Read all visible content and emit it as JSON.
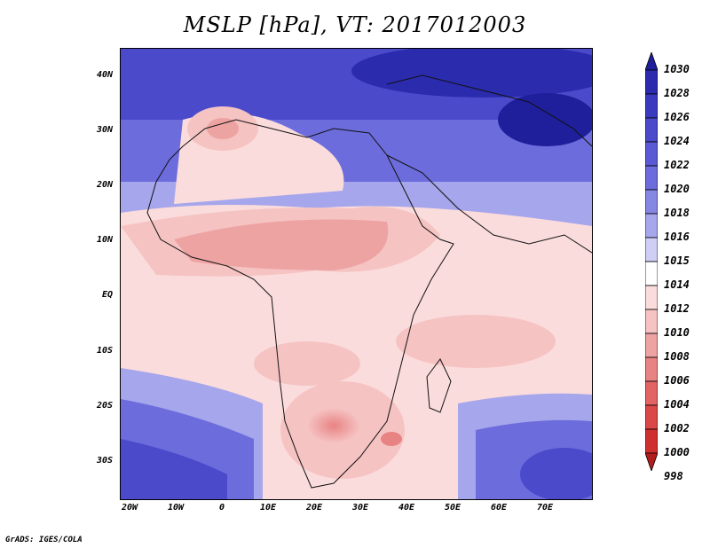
{
  "title": "MSLP [hPa], VT: 2017012003",
  "credit": "GrADS: IGES/COLA",
  "lat_labels": [
    "40N",
    "30N",
    "20N",
    "10N",
    "EQ",
    "10S",
    "20S",
    "30S"
  ],
  "lon_labels": [
    "20W",
    "10W",
    "0",
    "10E",
    "20E",
    "30E",
    "40E",
    "50E",
    "60E",
    "70E"
  ],
  "colorbar": {
    "levels": [
      "1030",
      "1028",
      "1026",
      "1024",
      "1022",
      "1020",
      "1018",
      "1016",
      "1015",
      "1014",
      "1012",
      "1010",
      "1008",
      "1006",
      "1004",
      "1002",
      "1000",
      "998"
    ],
    "colors": [
      "#1f1f9c",
      "#2b2bad",
      "#3a3abf",
      "#4a4acb",
      "#5a5ad4",
      "#6c6cdc",
      "#8686e3",
      "#a6a6ec",
      "#cfcff6",
      "#ffffff",
      "#fbdcdc",
      "#f6c3c3",
      "#eea3a3",
      "#e88383",
      "#e26464",
      "#db4848",
      "#cf2f2f",
      "#b21e1e"
    ]
  }
}
